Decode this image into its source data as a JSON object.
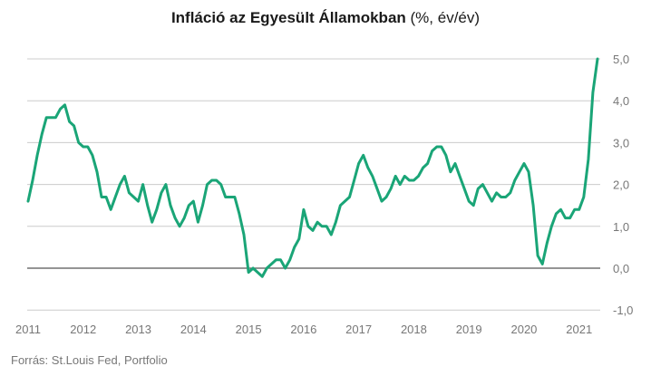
{
  "title": {
    "bold": "Infláció az Egyesült Államokban",
    "normal": "(%, év/év)"
  },
  "source": "Forrás: St.Louis Fed, Portfolio",
  "colors": {
    "line": "#1aa577",
    "grid": "#cccccc",
    "zero": "#555555",
    "text": "#777777"
  },
  "chart_data": {
    "type": "line",
    "title": "Infláció az Egyesült Államokban (%, év/év)",
    "xlabel": "",
    "ylabel": "",
    "x_tick_labels": [
      "2011",
      "2012",
      "2013",
      "2014",
      "2015",
      "2016",
      "2017",
      "2018",
      "2019",
      "2020",
      "2021"
    ],
    "y_tick_labels": [
      "5,0",
      "4,0",
      "3,0",
      "2,0",
      "1,0",
      "0,0",
      "-1,0"
    ],
    "y_ticks": [
      5,
      4,
      3,
      2,
      1,
      0,
      -1
    ],
    "ylim": [
      -1,
      5
    ],
    "xlim": [
      2011.0,
      2021.35
    ],
    "grid": true,
    "series": [
      {
        "x": [
          2011.0,
          2011.083,
          2011.167,
          2011.25,
          2011.333,
          2011.417,
          2011.5,
          2011.583,
          2011.667,
          2011.75,
          2011.833,
          2011.917,
          2012.0,
          2012.083,
          2012.167,
          2012.25,
          2012.333,
          2012.417,
          2012.5,
          2012.583,
          2012.667,
          2012.75,
          2012.833,
          2012.917,
          2013.0,
          2013.083,
          2013.167,
          2013.25,
          2013.333,
          2013.417,
          2013.5,
          2013.583,
          2013.667,
          2013.75,
          2013.833,
          2013.917,
          2014.0,
          2014.083,
          2014.167,
          2014.25,
          2014.333,
          2014.417,
          2014.5,
          2014.583,
          2014.667,
          2014.75,
          2014.833,
          2014.917,
          2015.0,
          2015.083,
          2015.167,
          2015.25,
          2015.333,
          2015.417,
          2015.5,
          2015.583,
          2015.667,
          2015.75,
          2015.833,
          2015.917,
          2016.0,
          2016.083,
          2016.167,
          2016.25,
          2016.333,
          2016.417,
          2016.5,
          2016.583,
          2016.667,
          2016.75,
          2016.833,
          2016.917,
          2017.0,
          2017.083,
          2017.167,
          2017.25,
          2017.333,
          2017.417,
          2017.5,
          2017.583,
          2017.667,
          2017.75,
          2017.833,
          2017.917,
          2018.0,
          2018.083,
          2018.167,
          2018.25,
          2018.333,
          2018.417,
          2018.5,
          2018.583,
          2018.667,
          2018.75,
          2018.833,
          2018.917,
          2019.0,
          2019.083,
          2019.167,
          2019.25,
          2019.333,
          2019.417,
          2019.5,
          2019.583,
          2019.667,
          2019.75,
          2019.833,
          2019.917,
          2020.0,
          2020.083,
          2020.167,
          2020.25,
          2020.333,
          2020.417,
          2020.5,
          2020.583,
          2020.667,
          2020.75,
          2020.833,
          2020.917,
          2021.0,
          2021.083,
          2021.167,
          2021.25,
          2021.333
        ],
        "values": [
          1.6,
          2.1,
          2.7,
          3.2,
          3.6,
          3.6,
          3.6,
          3.8,
          3.9,
          3.5,
          3.4,
          3.0,
          2.9,
          2.9,
          2.7,
          2.3,
          1.7,
          1.7,
          1.4,
          1.7,
          2.0,
          2.2,
          1.8,
          1.7,
          1.6,
          2.0,
          1.5,
          1.1,
          1.4,
          1.8,
          2.0,
          1.5,
          1.2,
          1.0,
          1.2,
          1.5,
          1.6,
          1.1,
          1.5,
          2.0,
          2.1,
          2.1,
          2.0,
          1.7,
          1.7,
          1.7,
          1.3,
          0.8,
          -0.1,
          0.0,
          -0.1,
          -0.2,
          0.0,
          0.1,
          0.2,
          0.2,
          0.0,
          0.2,
          0.5,
          0.7,
          1.4,
          1.0,
          0.9,
          1.1,
          1.0,
          1.0,
          0.8,
          1.1,
          1.5,
          1.6,
          1.7,
          2.1,
          2.5,
          2.7,
          2.4,
          2.2,
          1.9,
          1.6,
          1.7,
          1.9,
          2.2,
          2.0,
          2.2,
          2.1,
          2.1,
          2.2,
          2.4,
          2.5,
          2.8,
          2.9,
          2.9,
          2.7,
          2.3,
          2.5,
          2.2,
          1.9,
          1.6,
          1.5,
          1.9,
          2.0,
          1.8,
          1.6,
          1.8,
          1.7,
          1.7,
          1.8,
          2.1,
          2.3,
          2.5,
          2.3,
          1.5,
          0.3,
          0.1,
          0.6,
          1.0,
          1.3,
          1.4,
          1.2,
          1.2,
          1.4,
          1.4,
          1.7,
          2.6,
          4.2,
          5.0
        ]
      }
    ]
  }
}
